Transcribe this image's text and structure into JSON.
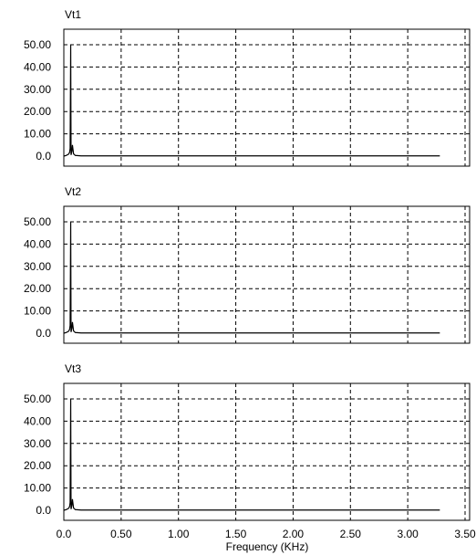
{
  "chart_data": {
    "type": "line",
    "xlabel": "Frequency (KHz)",
    "xlim": [
      0,
      3.5
    ],
    "ylim": [
      0,
      55
    ],
    "x_ticks": [
      "0.0",
      "0.50",
      "1.00",
      "1.50",
      "2.00",
      "2.50",
      "3.00",
      "3.50"
    ],
    "y_ticks": [
      "0.0",
      "10.00",
      "20.00",
      "30.00",
      "40.00",
      "50.00"
    ],
    "grid": true,
    "grid_style": "dashed",
    "line_color": "#000000",
    "panels": [
      {
        "title": "Vt1",
        "points": [
          [
            0,
            0
          ],
          [
            0.02,
            0.3
          ],
          [
            0.04,
            0.8
          ],
          [
            0.05,
            1.6
          ],
          [
            0.055,
            3.5
          ],
          [
            0.06,
            50
          ],
          [
            0.063,
            0.5
          ],
          [
            0.07,
            2
          ],
          [
            0.075,
            5
          ],
          [
            0.08,
            3
          ],
          [
            0.085,
            1
          ],
          [
            0.1,
            0.3
          ],
          [
            0.15,
            0.1
          ],
          [
            3.28,
            0.1
          ]
        ]
      },
      {
        "title": "Vt2",
        "points": [
          [
            0,
            0
          ],
          [
            0.02,
            0.3
          ],
          [
            0.04,
            0.8
          ],
          [
            0.05,
            1.6
          ],
          [
            0.055,
            3.5
          ],
          [
            0.06,
            50
          ],
          [
            0.063,
            0.5
          ],
          [
            0.07,
            2
          ],
          [
            0.075,
            5
          ],
          [
            0.08,
            3
          ],
          [
            0.085,
            1
          ],
          [
            0.1,
            0.3
          ],
          [
            0.15,
            0.1
          ],
          [
            3.28,
            0.1
          ]
        ]
      },
      {
        "title": "Vt3",
        "points": [
          [
            0,
            0
          ],
          [
            0.02,
            0.3
          ],
          [
            0.04,
            0.8
          ],
          [
            0.05,
            1.6
          ],
          [
            0.055,
            3.5
          ],
          [
            0.06,
            50
          ],
          [
            0.063,
            0.5
          ],
          [
            0.07,
            2
          ],
          [
            0.075,
            5
          ],
          [
            0.08,
            3
          ],
          [
            0.085,
            1
          ],
          [
            0.1,
            0.3
          ],
          [
            0.15,
            0.1
          ],
          [
            3.28,
            0.1
          ]
        ]
      }
    ]
  }
}
